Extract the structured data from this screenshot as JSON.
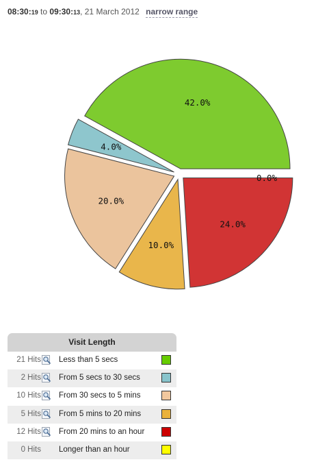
{
  "header": {
    "from_time": "08:30:",
    "from_sec": "19",
    "to_word": " to ",
    "to_time": "09:30:",
    "to_sec": "13",
    "date": ", 21 March 2012",
    "narrow_link": "narrow range"
  },
  "chart_data": {
    "type": "pie",
    "slices": [
      {
        "label": "Less than 5 secs",
        "value": 42.0,
        "pct_label": "42.0%",
        "color": "#7ecb2f"
      },
      {
        "label": "From 5 secs to 30 secs",
        "value": 4.0,
        "pct_label": "4.0%",
        "color": "#8ec6cd"
      },
      {
        "label": "From 30 secs to 5 mins",
        "value": 20.0,
        "pct_label": "20.0%",
        "color": "#ebc49d"
      },
      {
        "label": "From 5 mins to 20 mins",
        "value": 10.0,
        "pct_label": "10.0%",
        "color": "#e9b64b"
      },
      {
        "label": "From 20 mins to an hour",
        "value": 24.0,
        "pct_label": "24.0%",
        "color": "#d13434"
      },
      {
        "label": "Longer than an hour",
        "value": 0.0,
        "pct_label": "0.0%",
        "color": "#ffff00"
      }
    ]
  },
  "legend": {
    "title": "Visit Length",
    "rows": [
      {
        "hits": "21 Hits",
        "label": "Less than 5 secs",
        "color": "#66cc00",
        "has_icon": true
      },
      {
        "hits": "2 Hits",
        "label": "From 5 secs to 30 secs",
        "color": "#88c4cc",
        "has_icon": true
      },
      {
        "hits": "10 Hits",
        "label": "From 30 secs to 5 mins",
        "color": "#f2c89e",
        "has_icon": true
      },
      {
        "hits": "5 Hits",
        "label": "From 5 mins to 20 mins",
        "color": "#eab23c",
        "has_icon": true
      },
      {
        "hits": "12 Hits",
        "label": "From 20 mins to an hour",
        "color": "#cc0000",
        "has_icon": true
      },
      {
        "hits": "0 Hits",
        "label": "Longer than an hour",
        "color": "#ffff00",
        "has_icon": false
      }
    ]
  }
}
